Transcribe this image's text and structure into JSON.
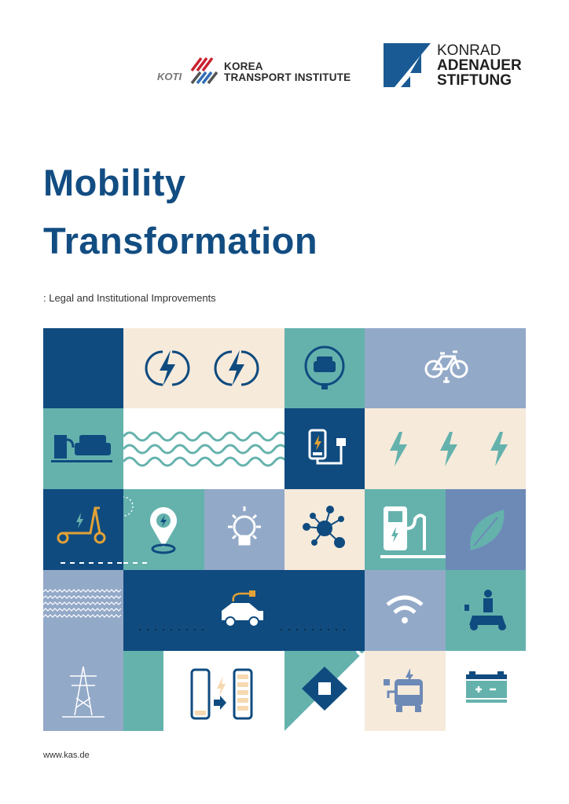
{
  "logos": {
    "koti": {
      "mark": "KOTI",
      "line1": "KOREA",
      "line2": "TRANSPORT INSTITUTE"
    },
    "kas": {
      "line1": "KONRAD",
      "line2": "ADENAUER",
      "line3": "STIFTUNG"
    }
  },
  "title": {
    "line1": "Mobility",
    "line2": "Transformation"
  },
  "subtitle": ":  Legal and Institutional Improvements",
  "footer": {
    "url": "www.kas.de"
  },
  "colors": {
    "dark_blue": "#0f4b7f",
    "beige": "#f6eadb",
    "teal": "#65b2ad",
    "lavender": "#93a9c8",
    "slate": "#6d8ab7",
    "orange": "#e2a237"
  }
}
